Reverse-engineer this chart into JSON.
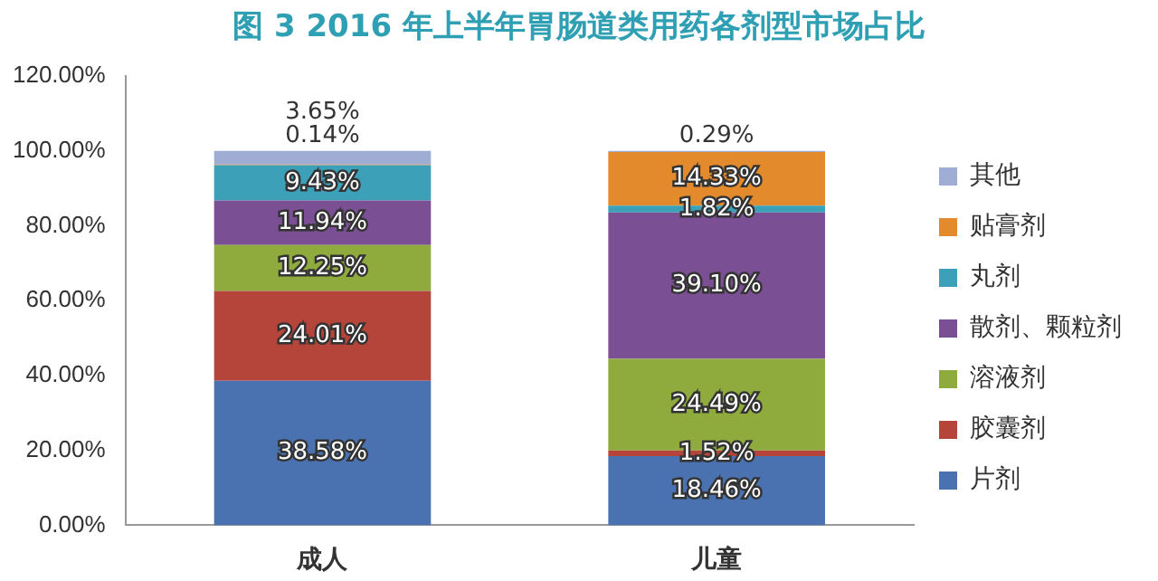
{
  "chart_data": {
    "type": "bar",
    "stacked": true,
    "title": "图 3 2016 年上半年胃肠道类用药各剂型市场占比",
    "categories": [
      "成人",
      "儿童"
    ],
    "series": [
      {
        "name": "片剂",
        "color": "#4a72b0",
        "values": [
          38.58,
          18.46
        ],
        "value_labels": [
          "38.58%",
          "18.46%"
        ]
      },
      {
        "name": "胶囊剂",
        "color": "#b5443a",
        "values": [
          24.01,
          1.52
        ],
        "value_labels": [
          "24.01%",
          "1.52%"
        ]
      },
      {
        "name": "溶液剂",
        "color": "#8fab3d",
        "values": [
          12.25,
          24.49
        ],
        "value_labels": [
          "12.25%",
          "24.49%"
        ]
      },
      {
        "name": "散剂、颗粒剂",
        "color": "#7b4f93",
        "values": [
          11.94,
          39.1
        ],
        "value_labels": [
          "11.94%",
          "39.10%"
        ]
      },
      {
        "name": "丸剂",
        "color": "#3ba0b8",
        "values": [
          9.43,
          1.82
        ],
        "value_labels": [
          "9.43%",
          "1.82%"
        ]
      },
      {
        "name": "贴膏剂",
        "color": "#e38a2d",
        "values": [
          0.14,
          14.33
        ],
        "value_labels": [
          "0.14%",
          "14.33%"
        ]
      },
      {
        "name": "其他",
        "color": "#9fadd4",
        "values": [
          3.65,
          0.29
        ],
        "value_labels": [
          "3.65%",
          "0.29%"
        ]
      }
    ],
    "ylim": [
      0,
      120
    ],
    "yticks": [
      {
        "value": 0,
        "label": "0.00%"
      },
      {
        "value": 20,
        "label": "20.00%"
      },
      {
        "value": 40,
        "label": "40.00%"
      },
      {
        "value": 60,
        "label": "60.00%"
      },
      {
        "value": 80,
        "label": "80.00%"
      },
      {
        "value": 100,
        "label": "100.00%"
      },
      {
        "value": 120,
        "label": "120.00%"
      }
    ],
    "grid": false,
    "legend": "right"
  }
}
